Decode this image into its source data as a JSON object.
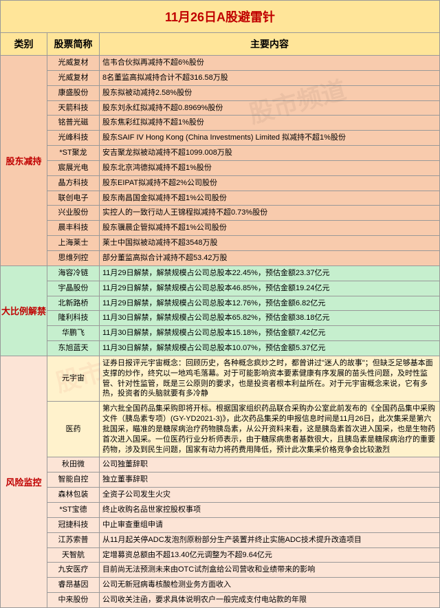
{
  "title": "11月26日A股避雷针",
  "headers": {
    "cat": "类别",
    "stock": "股票简称",
    "content": "主要内容"
  },
  "colors": {
    "title_bg": "#ffe599",
    "title_fg": "#c00000",
    "g1": "#f8cbad",
    "g2": "#c6efce",
    "g3": "#fff2cc",
    "g4": "#fce4d6"
  },
  "sections": [
    {
      "label": "股东减持",
      "cls": "rg1",
      "rows": [
        {
          "s": "光威复材",
          "c": "信韦合伙拟再减持不超6%股份"
        },
        {
          "s": "光威复材",
          "c": "8名董监高拟减持合计不超316.58万股"
        },
        {
          "s": "康盛股份",
          "c": "股东拟被动减持2.58%股份"
        },
        {
          "s": "天箭科技",
          "c": "股东刘永红拟减持不超0.8969%股份"
        },
        {
          "s": "铭普光磁",
          "c": "股东焦彩红拟减持不超1%股份"
        },
        {
          "s": "光峰科技",
          "c": "股东SAIF IV Hong Kong (China Investments) Limited 拟减持不超1%股份"
        },
        {
          "s": "*ST聚龙",
          "c": "安吉聚龙拟被动减持不超1099.008万股"
        },
        {
          "s": "宸展光电",
          "c": "股东北京鸿德拟减持不超1%股份"
        },
        {
          "s": "晶方科技",
          "c": "股东EIPAT拟减持不超2%公司股份"
        },
        {
          "s": "联创电子",
          "c": "股东南昌国金拟减持不超1%公司股份"
        },
        {
          "s": "兴业股份",
          "c": "实控人的一致行动人王锦程拟减持不超0.73%股份"
        },
        {
          "s": "晨丰科技",
          "c": "股东骥晨企管拟减持不超1%公司股份"
        },
        {
          "s": "上海莱士",
          "c": "莱士中国拟被动减持不超3548万股"
        },
        {
          "s": "思维列控",
          "c": "部分董监高拟合计减持不超53.42万股"
        }
      ]
    },
    {
      "label": "大比例解禁",
      "cls": "rg2",
      "rows": [
        {
          "s": "海容冷链",
          "c": "11月29日解禁，解禁规模占公司总股本22.45%，预估金额23.37亿元"
        },
        {
          "s": "宇晶股份",
          "c": "11月29日解禁，解禁规模占公司总股本46.85%，预估金额19.24亿元"
        },
        {
          "s": "北新路桥",
          "c": "11月29日解禁，解禁规模占公司总股本12.76%，预估金额6.82亿元"
        },
        {
          "s": "隆利科技",
          "c": "11月30日解禁，解禁规模占公司总股本65.82%，预估金额38.18亿元"
        },
        {
          "s": "华鹏飞",
          "c": "11月30日解禁，解禁规模占公司总股本15.18%，预估金额7.42亿元"
        },
        {
          "s": "东旭蓝天",
          "c": "11月30日解禁，解禁规模占公司总股本10.07%，预估金额5.37亿元"
        }
      ]
    },
    {
      "label": "风险监控",
      "cls": "mix",
      "rows": [
        {
          "s": "元宇宙",
          "c": "证券日报评元宇宙概念：回顾历史，各种概念疯炒之时，都曾讲过\"迷人的故事\"；但缺乏足够基本面支撑的炒作，终究以一地鸡毛落幕。对于可能影响资本要素健康有序发展的苗头性问题，及时性监管、针对性监管，既是三公原则的要求，也是投资者根本利益所在。对于元宇宙概念来说，它有多热，投资者的头脑就要有多冷静",
          "cls": "rg3"
        },
        {
          "s": "医药",
          "c": "第六批全国药品集采购即将开标。根据国家组织药品联合采购办公室此前发布的《全国药品集中采购文件（胰岛素专项）(GY-YD2021-3)》，此次药品集采的申报信息时间是11月26日，此次集采是第六批国采，瞄准的是糖尿病治疗药物胰岛素，从公开资料来看，这是胰岛素首次进入国采，也是生物药首次进入国采。一位医药行业分析师表示，由于糖尿病患者基数很大，且胰岛素是糖尿病治疗的重要药物，涉及到民生问题，国家有动力将药费用降低，预计此次集采价格竞争会比较激烈",
          "cls": "rg3"
        },
        {
          "s": "秋田微",
          "c": "公司独董辞职",
          "cls": "rg4"
        },
        {
          "s": "智能自控",
          "c": "独立董事辞职",
          "cls": "rg4"
        },
        {
          "s": "森林包装",
          "c": "全资子公司发生火灾",
          "cls": "rg4"
        },
        {
          "s": "*ST宝德",
          "c": "终止收购名品世家控股权事项",
          "cls": "rg4"
        },
        {
          "s": "冠捷科技",
          "c": "中止审查重组申请",
          "cls": "rg4"
        },
        {
          "s": "江苏索普",
          "c": "从11月起关停ADC发泡剂原粉部分生产装置并终止实施ADC技术提升改造项目",
          "cls": "rg4"
        },
        {
          "s": "天智航",
          "c": "定增募资总额由不超13.40亿元调整为不超9.64亿元",
          "cls": "rg4"
        },
        {
          "s": "九安医疗",
          "c": "目前尚无法预测未来由OTC试剂盒给公司营收和业绩带来的影响",
          "cls": "rg4"
        },
        {
          "s": "睿昂基因",
          "c": "公司无新冠病毒核酸检测业务方面收入",
          "cls": "rg4"
        },
        {
          "s": "中来股份",
          "c": "公司收关注函，要求具体说明农户一般完成支付电站款的年限",
          "cls": "rg4"
        }
      ]
    }
  ],
  "watermarks": [
    "股市频道",
    "股市"
  ]
}
